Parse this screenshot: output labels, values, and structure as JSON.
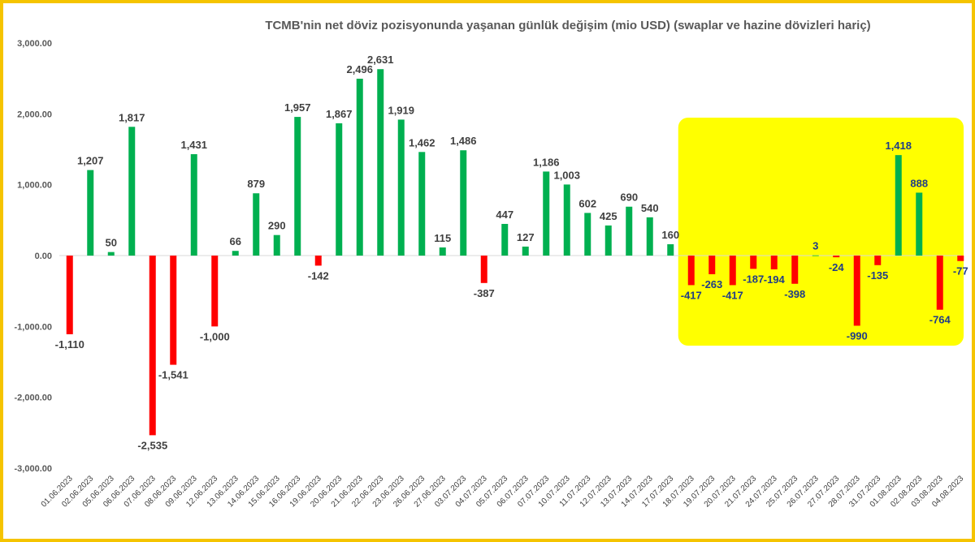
{
  "colors": {
    "positive": "#00b050",
    "negative": "#ff0000",
    "frame": "#f5c400",
    "highlight": "#ffff00",
    "label_normal": "#404040",
    "label_highlight": "#1f3c88"
  },
  "chart_data": {
    "type": "bar",
    "title": "TCMB'nin net döviz pozisyonunda yaşanan günlük değişim (mio USD) (swaplar ve hazine dövizleri hariç)",
    "xlabel": "",
    "ylabel": "",
    "ylim": [
      -3000,
      3000
    ],
    "yticks": [
      3000,
      2000,
      1000,
      0,
      -1000,
      -2000,
      -3000
    ],
    "ytick_labels": [
      "3,000.00",
      "2,000.00",
      "1,000.00",
      "0.00",
      "-1,000.00",
      "-2,000.00",
      "-3,000.00"
    ],
    "grid": false,
    "legend": "none",
    "categories": [
      "01.06.2023",
      "02.06.2023",
      "05.06.2023",
      "06.06.2023",
      "07.06.2023",
      "08.06.2023",
      "09.06.2023",
      "12.06.2023",
      "13.06.2023",
      "14.06.2023",
      "15.06.2023",
      "16.06.2023",
      "19.06.2023",
      "20.06.2023",
      "21.06.2023",
      "22.06.2023",
      "23.06.2023",
      "26.06.2023",
      "27.06.2023",
      "03.07.2023",
      "04.07.2023",
      "05.07.2023",
      "06.07.2023",
      "07.07.2023",
      "10.07.2023",
      "11.07.2023",
      "12.07.2023",
      "13.07.2023",
      "14.07.2023",
      "17.07.2023",
      "18.07.2023",
      "19.07.2023",
      "20.07.2023",
      "21.07.2023",
      "24.07.2023",
      "25.07.2023",
      "26.07.2023",
      "27.07.2023",
      "28.07.2023",
      "31.07.2023",
      "01.08.2023",
      "02.08.2023",
      "03.08.2023",
      "04.08.2023"
    ],
    "values": [
      -1110,
      1207,
      50,
      1817,
      -2535,
      -1541,
      1431,
      -1000,
      66,
      879,
      290,
      1957,
      -142,
      1867,
      2496,
      2631,
      1919,
      1462,
      115,
      1486,
      -387,
      447,
      127,
      1186,
      1003,
      602,
      425,
      690,
      540,
      160,
      -417,
      -263,
      -417,
      -187,
      -194,
      -398,
      3,
      -24,
      -990,
      -135,
      1418,
      888,
      -764,
      -77
    ],
    "data_labels": [
      "-1,110",
      "1,207",
      "50",
      "1,817",
      "-2,535",
      "-1,541",
      "1,431",
      "-1,000",
      "66",
      "879",
      "290",
      "1,957",
      "-142",
      "1,867",
      "2,496",
      "2,631",
      "1,919",
      "1,462",
      "115",
      "1,486",
      "-387",
      "447",
      "127",
      "1,186",
      "1,003",
      "602",
      "425",
      "690",
      "540",
      "160",
      "-417",
      "-263",
      "-417",
      "-187",
      "-194",
      "-398",
      "3",
      "-24",
      "-990",
      "-135",
      "1,418",
      "888",
      "-764",
      "-77"
    ],
    "highlight_from_index": 30
  }
}
